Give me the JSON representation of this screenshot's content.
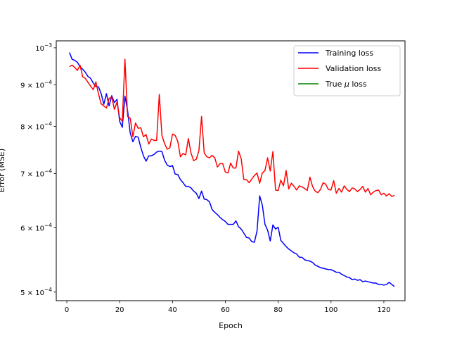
{
  "chart_data": {
    "type": "line",
    "title": "",
    "xlabel": "Epoch",
    "ylabel": "Error (MSE)",
    "yscale": "log",
    "xlim": [
      -4,
      128
    ],
    "ylim": [
      0.000488,
      0.00102
    ],
    "xticks": [
      0,
      20,
      40,
      60,
      80,
      100,
      120
    ],
    "yticks": [
      {
        "value": 0.0005,
        "mantissa": "5",
        "base": "10",
        "exp": "−4"
      },
      {
        "value": 0.0006,
        "mantissa": "6",
        "base": "10",
        "exp": "−4"
      },
      {
        "value": 0.0007,
        "mantissa": "7",
        "base": "10",
        "exp": "−4"
      },
      {
        "value": 0.0008,
        "mantissa": "8",
        "base": "10",
        "exp": "−4"
      },
      {
        "value": 0.0009,
        "mantissa": "9",
        "base": "10",
        "exp": "−4"
      },
      {
        "value": 0.001,
        "mantissa": "",
        "base": "10",
        "exp": "−3"
      }
    ],
    "grid": false,
    "legend": "top-right",
    "series": [
      {
        "name": "Training loss",
        "color": "#0000ff",
        "x": [
          1,
          2,
          3,
          4,
          5,
          6,
          7,
          8,
          9,
          10,
          11,
          12,
          13,
          14,
          15,
          16,
          17,
          18,
          19,
          20,
          21,
          22,
          23,
          24,
          25,
          26,
          27,
          28,
          29,
          30,
          31,
          32,
          33,
          34,
          35,
          36,
          37,
          38,
          39,
          40,
          41,
          42,
          43,
          44,
          45,
          46,
          47,
          48,
          49,
          50,
          51,
          52,
          53,
          54,
          55,
          56,
          57,
          58,
          59,
          60,
          61,
          62,
          63,
          64,
          65,
          66,
          67,
          68,
          69,
          70,
          71,
          72,
          73,
          74,
          75,
          76,
          77,
          78,
          79,
          80,
          81,
          82,
          83,
          84,
          85,
          86,
          87,
          88,
          89,
          90,
          91,
          92,
          93,
          94,
          95,
          96,
          97,
          98,
          99,
          100,
          101,
          102,
          103,
          104,
          105,
          106,
          107,
          108,
          109,
          110,
          111,
          112,
          113,
          114,
          115,
          116,
          117,
          118,
          119,
          120,
          121,
          122,
          123,
          124
        ],
        "y": [
          0.000987,
          0.000968,
          0.000965,
          0.00096,
          0.000948,
          0.000941,
          0.000933,
          0.000922,
          0.000917,
          0.000905,
          0.000896,
          0.000895,
          0.000878,
          0.000852,
          0.000878,
          0.000848,
          0.000873,
          0.000856,
          0.000864,
          0.000812,
          0.000798,
          0.000872,
          0.000837,
          0.000785,
          0.000766,
          0.000778,
          0.000776,
          0.000754,
          0.000736,
          0.000725,
          0.000736,
          0.000736,
          0.000739,
          0.000744,
          0.000746,
          0.000745,
          0.000727,
          0.000717,
          0.000714,
          0.000716,
          0.000699,
          0.000698,
          0.000688,
          0.000682,
          0.000675,
          0.000675,
          0.000672,
          0.000666,
          0.000662,
          0.000652,
          0.000666,
          0.000651,
          0.00065,
          0.000646,
          0.000632,
          0.000627,
          0.000623,
          0.000618,
          0.000614,
          0.000611,
          0.000606,
          0.000606,
          0.000606,
          0.000612,
          0.000602,
          0.000598,
          0.000591,
          0.000584,
          0.000583,
          0.000577,
          0.000576,
          0.000595,
          0.000657,
          0.00064,
          0.000606,
          0.000596,
          0.000578,
          0.000605,
          0.000598,
          0.000601,
          0.000579,
          0.000574,
          0.000569,
          0.000565,
          0.000562,
          0.000559,
          0.000557,
          0.000552,
          0.000552,
          0.000548,
          0.000547,
          0.000546,
          0.000544,
          0.00054,
          0.000538,
          0.000536,
          0.000535,
          0.000534,
          0.000533,
          0.000533,
          0.000531,
          0.000529,
          0.000529,
          0.000526,
          0.000524,
          0.000522,
          0.000521,
          0.000518,
          0.000519,
          0.000517,
          0.000518,
          0.000515,
          0.000516,
          0.000515,
          0.000514,
          0.000513,
          0.000513,
          0.000511,
          0.000511,
          0.00051,
          0.000511,
          0.000514,
          0.000511,
          0.000508
        ]
      },
      {
        "name": "Validation loss",
        "color": "#ff0000",
        "x": [
          1,
          2,
          3,
          4,
          5,
          6,
          7,
          8,
          9,
          10,
          11,
          12,
          13,
          14,
          15,
          16,
          17,
          18,
          19,
          20,
          21,
          22,
          23,
          24,
          25,
          26,
          27,
          28,
          29,
          30,
          31,
          32,
          33,
          34,
          35,
          36,
          37,
          38,
          39,
          40,
          41,
          42,
          43,
          44,
          45,
          46,
          47,
          48,
          49,
          50,
          51,
          52,
          53,
          54,
          55,
          56,
          57,
          58,
          59,
          60,
          61,
          62,
          63,
          64,
          65,
          66,
          67,
          68,
          69,
          70,
          71,
          72,
          73,
          74,
          75,
          76,
          77,
          78,
          79,
          80,
          81,
          82,
          83,
          84,
          85,
          86,
          87,
          88,
          89,
          90,
          91,
          92,
          93,
          94,
          95,
          96,
          97,
          98,
          99,
          100,
          101,
          102,
          103,
          104,
          105,
          106,
          107,
          108,
          109,
          110,
          111,
          112,
          113,
          114,
          115,
          116,
          117,
          118,
          119,
          120,
          121,
          122,
          123,
          124
        ],
        "y": [
          0.000948,
          0.000952,
          0.000946,
          0.000938,
          0.000952,
          0.000921,
          0.000917,
          0.000907,
          0.000897,
          0.000888,
          0.000908,
          0.000877,
          0.000853,
          0.000848,
          0.000843,
          0.000866,
          0.00087,
          0.00084,
          0.000857,
          0.00082,
          0.000812,
          0.000968,
          0.000823,
          0.000819,
          0.000777,
          0.000808,
          0.000796,
          0.000797,
          0.000777,
          0.000782,
          0.000761,
          0.000772,
          0.000769,
          0.000769,
          0.000876,
          0.00078,
          0.000762,
          0.00075,
          0.000753,
          0.000783,
          0.00078,
          0.000767,
          0.000734,
          0.000741,
          0.000738,
          0.000773,
          0.000742,
          0.000726,
          0.000729,
          0.000747,
          0.000823,
          0.000742,
          0.000734,
          0.000732,
          0.000737,
          0.000732,
          0.000713,
          0.00072,
          0.00072,
          0.000703,
          0.000701,
          0.000721,
          0.000711,
          0.000711,
          0.000746,
          0.00073,
          0.000688,
          0.000688,
          0.000682,
          0.000689,
          0.000696,
          0.000701,
          0.000681,
          0.000701,
          0.000706,
          0.000732,
          0.000705,
          0.000745,
          0.000668,
          0.000667,
          0.000687,
          0.000676,
          0.000706,
          0.00067,
          0.000681,
          0.000675,
          0.000668,
          0.000676,
          0.000674,
          0.000671,
          0.000667,
          0.000693,
          0.000675,
          0.000666,
          0.000663,
          0.000669,
          0.000682,
          0.000679,
          0.000669,
          0.000668,
          0.000686,
          0.000662,
          0.000671,
          0.000664,
          0.000676,
          0.000669,
          0.000665,
          0.000672,
          0.00067,
          0.000665,
          0.000669,
          0.000675,
          0.000664,
          0.000671,
          0.000659,
          0.000664,
          0.000667,
          0.000668,
          0.000659,
          0.000662,
          0.000657,
          0.000661,
          0.000656,
          0.000658
        ]
      },
      {
        "name": "True μ loss",
        "color": "#008000",
        "x": [],
        "y": []
      }
    ]
  }
}
